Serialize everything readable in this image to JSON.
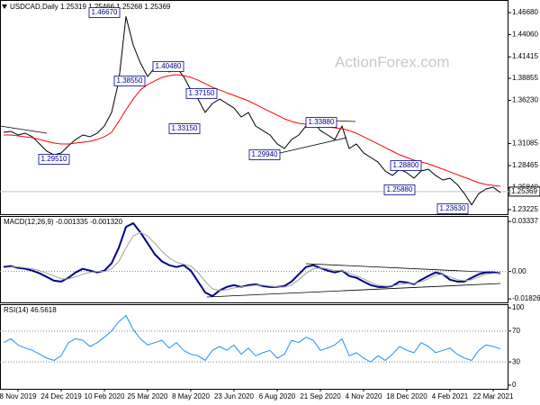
{
  "chart_data": [
    {
      "type": "line",
      "title": "USDCAD,Daily  1.25319 1.25466 1.25268 1.25369",
      "watermark": "ActionForex.com",
      "ylim": [
        1.2268,
        1.4818
      ],
      "yticks": [
        {
          "value": 1.4668,
          "label": "1.46680"
        },
        {
          "value": 1.4406,
          "label": "1.44060"
        },
        {
          "value": 1.41415,
          "label": "1.41415"
        },
        {
          "value": 1.38855,
          "label": "1.38855"
        },
        {
          "value": 1.3623,
          "label": "1.36230"
        },
        {
          "value": 1.31085,
          "label": "1.31085"
        },
        {
          "value": 1.28465,
          "label": "1.28465"
        },
        {
          "value": 1.2584,
          "label": "1.25840"
        },
        {
          "value": 1.23225,
          "label": "1.23225"
        }
      ],
      "grid": false,
      "last": {
        "value": 1.25369,
        "label": "1.25369"
      },
      "series": [
        {
          "color": "#000000",
          "values": [
            1.3243,
            1.3254,
            1.3211,
            1.3232,
            1.319,
            1.3104,
            1.3018,
            1.2975,
            1.2997,
            1.3082,
            1.3157,
            1.3211,
            1.319,
            1.3232,
            1.3318,
            1.3479,
            1.3854,
            1.462,
            1.4282,
            1.4068,
            1.3907,
            1.4014,
            1.4046,
            1.3961,
            1.4014,
            1.3907,
            1.3747,
            1.3639,
            1.3479,
            1.3586,
            1.3639,
            1.3586,
            1.3532,
            1.3425,
            1.3479,
            1.3318,
            1.3264,
            1.3211,
            1.3104,
            1.305,
            1.3157,
            1.3211,
            1.3318,
            1.3372,
            1.3264,
            1.3211,
            1.3157,
            1.3318,
            1.305,
            1.3104,
            1.2997,
            1.2943,
            1.2889,
            1.2782,
            1.2729,
            1.2804,
            1.2761,
            1.2697,
            1.2782,
            1.2804,
            1.2729,
            1.2675,
            1.2697,
            1.2622,
            1.2514,
            1.238,
            1.2514,
            1.2568,
            1.2589,
            1.2525
          ]
        },
        {
          "color": "#ff0000",
          "values": [
            1.3211,
            1.3211,
            1.32,
            1.319,
            1.3179,
            1.3157,
            1.3136,
            1.3114,
            1.3104,
            1.3104,
            1.3114,
            1.3125,
            1.3136,
            1.3157,
            1.319,
            1.3243,
            1.3372,
            1.3511,
            1.3639,
            1.3747,
            1.3811,
            1.3854,
            1.3897,
            1.3918,
            1.3929,
            1.3918,
            1.3897,
            1.3864,
            1.3822,
            1.3779,
            1.3747,
            1.3714,
            1.3682,
            1.365,
            1.3618,
            1.3575,
            1.3532,
            1.3489,
            1.3447,
            1.3404,
            1.3372,
            1.335,
            1.3339,
            1.3329,
            1.3318,
            1.3307,
            1.3296,
            1.3286,
            1.3264,
            1.3232,
            1.319,
            1.3147,
            1.3104,
            1.3061,
            1.3018,
            1.2975,
            1.2943,
            1.2911,
            1.2889,
            1.2868,
            1.2836,
            1.2804,
            1.2772,
            1.2739,
            1.2707,
            1.2675,
            1.2643,
            1.2622,
            1.2611,
            1.26
          ]
        }
      ],
      "annotations": [
        "1.46670",
        "1.38550",
        "1.40480",
        "1.37150",
        "1.33150",
        "1.29510",
        "1.29940",
        "1.33880",
        "1.28800",
        "1.25880",
        "1.23630"
      ]
    },
    {
      "type": "line",
      "title": "MACD(12,26,9) -0.001335 -0.001320",
      "ylim": [
        -0.0206,
        0.037
      ],
      "yticks": [
        {
          "value": 0.03337,
          "label": "0.03337"
        },
        {
          "value": 0,
          "label": "0.00"
        },
        {
          "value": -0.018262,
          "label": "-0.018262"
        }
      ],
      "grid": true,
      "series": [
        {
          "color": "#00008b",
          "values": [
            0.003,
            0.0036,
            0.0024,
            0.0018,
            0.0006,
            -0.0012,
            -0.0036,
            -0.0061,
            -0.0067,
            -0.0042,
            -0.0006,
            0.0018,
            0.0006,
            -0.0006,
            0.0006,
            0.0055,
            0.0158,
            0.0297,
            0.0322,
            0.0261,
            0.0188,
            0.0115,
            0.0067,
            0.0042,
            0.003,
            0.0042,
            0.0006,
            -0.0067,
            -0.014,
            -0.0164,
            -0.0127,
            -0.0103,
            -0.0091,
            -0.0103,
            -0.0091,
            -0.0085,
            -0.0097,
            -0.0103,
            -0.0103,
            -0.0097,
            -0.0067,
            -0.0018,
            0.003,
            0.0042,
            0.0024,
            0.0006,
            -0.0006,
            0.0006,
            -0.003,
            -0.0042,
            -0.0067,
            -0.0091,
            -0.0103,
            -0.0103,
            -0.0097,
            -0.0067,
            -0.0073,
            -0.0085,
            -0.0055,
            -0.003,
            -0.0006,
            -0.0018,
            -0.0055,
            -0.0067,
            -0.0067,
            -0.0042,
            -0.0018,
            -0.0006,
            -0.0006,
            -0.0012
          ]
        },
        {
          "color": "#a0a0a0",
          "values": [
            0.0024,
            0.003,
            0.003,
            0.0024,
            0.0018,
            0.0006,
            -0.0012,
            -0.003,
            -0.0049,
            -0.0049,
            -0.0036,
            -0.0018,
            -0.0006,
            0,
            0,
            0.0018,
            0.0067,
            0.0158,
            0.0237,
            0.0261,
            0.0237,
            0.0188,
            0.0134,
            0.0091,
            0.0061,
            0.0049,
            0.0036,
            -0.0006,
            -0.0067,
            -0.0115,
            -0.0127,
            -0.0121,
            -0.0109,
            -0.0103,
            -0.0097,
            -0.0091,
            -0.0091,
            -0.0097,
            -0.0103,
            -0.0103,
            -0.0091,
            -0.0055,
            -0.0012,
            0.0018,
            0.0024,
            0.0018,
            0.0006,
            0.0006,
            -0.0012,
            -0.003,
            -0.0049,
            -0.0073,
            -0.0091,
            -0.0097,
            -0.0097,
            -0.0085,
            -0.0079,
            -0.0079,
            -0.0067,
            -0.0049,
            -0.0024,
            -0.0018,
            -0.0036,
            -0.0055,
            -0.0061,
            -0.0055,
            -0.0036,
            -0.0018,
            -0.0012,
            -0.0012
          ]
        }
      ]
    },
    {
      "type": "line",
      "title": "RSI(14) 46.5618",
      "ylim": [
        -4.7,
        104.7
      ],
      "yticks": [
        100,
        70,
        30,
        0
      ],
      "grid": true,
      "series": [
        {
          "color": "#1e90ff",
          "values": [
            55,
            60,
            52,
            48,
            45,
            40,
            35,
            32,
            38,
            55,
            60,
            58,
            50,
            55,
            62,
            70,
            82,
            90,
            72,
            60,
            52,
            55,
            58,
            48,
            55,
            45,
            40,
            38,
            32,
            45,
            50,
            45,
            52,
            40,
            48,
            38,
            42,
            45,
            35,
            40,
            58,
            55,
            62,
            58,
            45,
            48,
            52,
            60,
            38,
            42,
            35,
            30,
            38,
            32,
            40,
            50,
            45,
            42,
            55,
            50,
            42,
            45,
            48,
            40,
            35,
            32,
            45,
            52,
            50,
            47
          ]
        }
      ],
      "categories": [
        null,
        null,
        "8 Nov 2019",
        null,
        null,
        null,
        null,
        null,
        "24 Dec 2019",
        null,
        null,
        null,
        null,
        null,
        "10 Feb 2020",
        null,
        null,
        null,
        null,
        null,
        "25 Mar 2020",
        null,
        null,
        null,
        null,
        null,
        "8 May 2020",
        null,
        null,
        null,
        null,
        null,
        "23 Jun 2020",
        null,
        null,
        null,
        null,
        null,
        "6 Aug 2020",
        null,
        null,
        null,
        null,
        null,
        "21 Sep 2020",
        null,
        null,
        null,
        null,
        null,
        "4 Nov 2020",
        null,
        null,
        null,
        null,
        null,
        "18 Dec 2020",
        null,
        null,
        null,
        null,
        null,
        "4 Feb 2021",
        null,
        null,
        null,
        null,
        null,
        "22 Mar 2021",
        null
      ]
    }
  ]
}
